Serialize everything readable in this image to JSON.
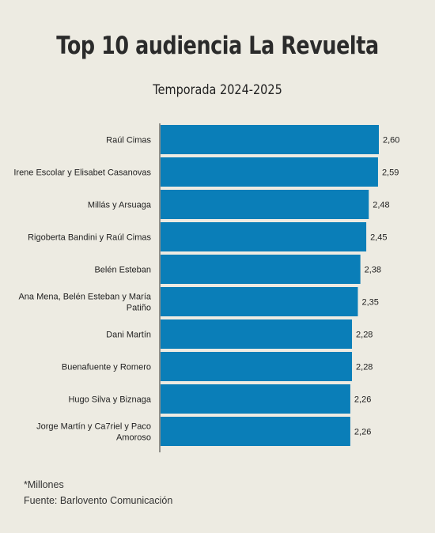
{
  "chart_data": {
    "type": "bar",
    "orientation": "horizontal",
    "title": "Top 10 audiencia La Revuelta",
    "subtitle": "Temporada 2024-2025",
    "categories": [
      "Raúl Cimas",
      "Irene Escolar y Elisabet Casanovas",
      "Millás y Arsuaga",
      "Rigoberta Bandini y Raúl Cimas",
      "Belén Esteban",
      "Ana Mena, Belén Esteban y María Patiño",
      "Dani Martín",
      "Buenafuente y Romero",
      "Hugo Silva y Biznaga",
      "Jorge Martín y Ca7riel y Paco Amoroso"
    ],
    "category_lines": [
      [
        "Raúl Cimas"
      ],
      [
        "Irene Escolar y Elisabet Casanovas"
      ],
      [
        "Millás y Arsuaga"
      ],
      [
        "Rigoberta Bandini y Raúl Cimas"
      ],
      [
        "Belén Esteban"
      ],
      [
        "Ana Mena, Belén Esteban y María",
        "Patiño"
      ],
      [
        "Dani Martín"
      ],
      [
        "Buenafuente y Romero"
      ],
      [
        "Hugo Silva y Biznaga"
      ],
      [
        "Jorge Martín y Ca7riel y Paco",
        "Amoroso"
      ]
    ],
    "values": [
      2.6,
      2.59,
      2.48,
      2.45,
      2.38,
      2.35,
      2.28,
      2.28,
      2.26,
      2.26
    ],
    "value_labels": [
      "2,60",
      "2,59",
      "2,48",
      "2,45",
      "2,38",
      "2,35",
      "2,28",
      "2,28",
      "2,26",
      "2,26"
    ],
    "xlim": [
      0,
      2.6
    ],
    "bar_color": "#0a7eb8",
    "grid": false,
    "legend": "none"
  },
  "notes": {
    "unit": "*Millones",
    "source": "Fuente: Barlovento Comunicación"
  }
}
